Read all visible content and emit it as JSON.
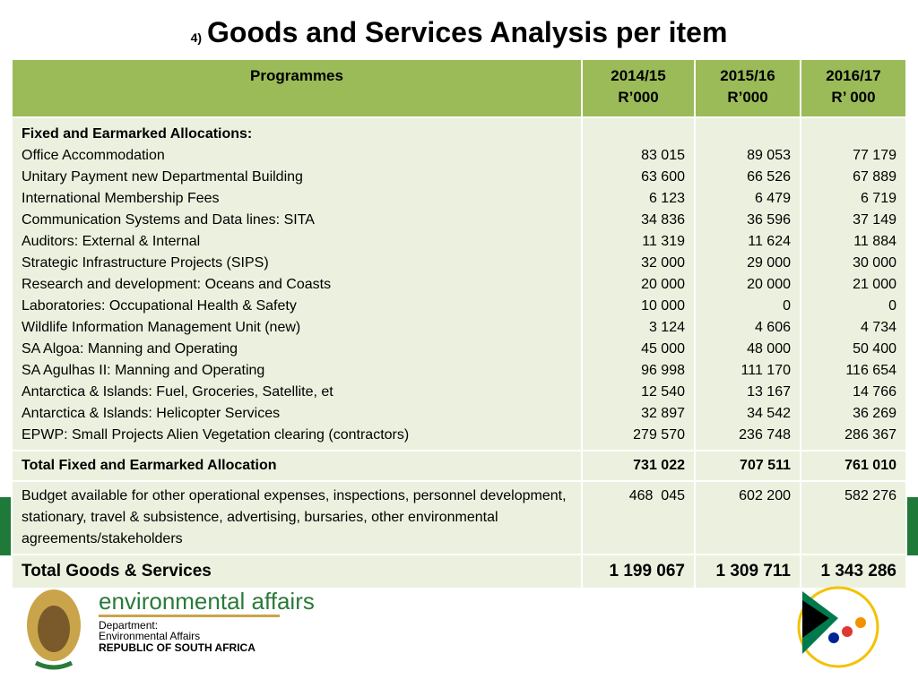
{
  "title": {
    "number": "4)",
    "text": "Goods and Services Analysis  per item"
  },
  "table": {
    "header": [
      [
        "Programmes"
      ],
      [
        "2014/15",
        "R’000"
      ],
      [
        "2015/16",
        "R’000"
      ],
      [
        "2016/17",
        "R’ 000"
      ]
    ],
    "section_heading": "Fixed and Earmarked Allocations:",
    "rows": [
      [
        "Office Accommodation",
        "83 015",
        "89 053",
        "77 179"
      ],
      [
        "Unitary Payment new Departmental Building",
        "63 600",
        "66 526",
        "67 889"
      ],
      [
        "International Membership Fees",
        "6 123",
        "6 479",
        "6 719"
      ],
      [
        "Communication Systems and Data lines: SITA",
        "34 836",
        "36 596",
        "37 149"
      ],
      [
        "Auditors: External & Internal",
        "11 319",
        "11 624",
        "11 884"
      ],
      [
        "Strategic Infrastructure Projects (SIPS)",
        "32 000",
        "29 000",
        "30 000"
      ],
      [
        "Research and development: Oceans and Coasts",
        "20 000",
        "20 000",
        "21 000"
      ],
      [
        "Laboratories: Occupational Health & Safety",
        "10 000",
        "0",
        "0"
      ],
      [
        "Wildlife Information Management Unit (new)",
        "3 124",
        "4 606",
        "4 734"
      ],
      [
        "SA Algoa: Manning and Operating",
        "45 000",
        "48 000",
        "50 400"
      ],
      [
        "SA Agulhas II: Manning and Operating",
        "96 998",
        "111 170",
        "116 654"
      ],
      [
        "Antarctica & Islands: Fuel, Groceries, Satellite, et",
        "12 540",
        "13 167",
        "14 766"
      ],
      [
        "Antarctica & Islands: Helicopter Services",
        "32 897",
        "34 542",
        "36 269"
      ],
      [
        "EPWP: Small Projects Alien Vegetation clearing (contractors)",
        "279 570",
        "236 748",
        "286 367"
      ]
    ],
    "total_fixed": [
      "Total Fixed and Earmarked Allocation",
      "731 022",
      "707 511",
      "761 010"
    ],
    "budget": [
      "Budget available for other operational expenses, inspections, personnel development, stationary, travel & subsistence, advertising, bursaries, other environmental agreements/stakeholders",
      "468  045",
      "602 200",
      "582 276"
    ],
    "total": [
      "Total Goods & Services",
      "1 199 067",
      "1 309 711",
      "1 343 286"
    ]
  },
  "footer": {
    "brand": "environmental affairs",
    "dept": [
      "Department:",
      "Environmental Affairs",
      "REPUBLIC OF SOUTH AFRICA"
    ]
  }
}
